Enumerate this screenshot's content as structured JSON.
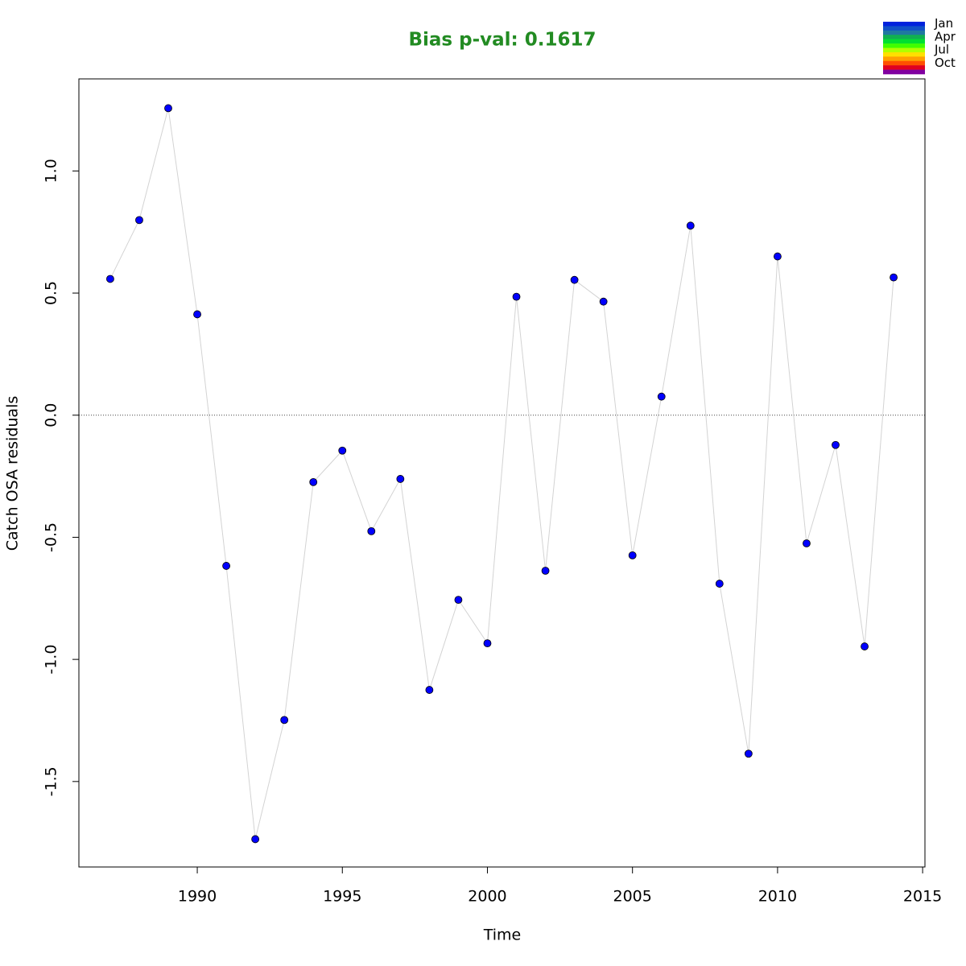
{
  "chart_data": {
    "type": "line",
    "title": "Bias p-val: 0.1617",
    "title_color": "#228b22",
    "x_label": "Time",
    "y_label": "Catch OSA residuals",
    "x": [
      1987,
      1988,
      1989,
      1990,
      1991,
      1992,
      1993,
      1994,
      1995,
      1996,
      1997,
      1998,
      1999,
      2000,
      2001,
      2002,
      2003,
      2004,
      2005,
      2006,
      2007,
      2008,
      2009,
      2010,
      2011,
      2012,
      2013,
      2014
    ],
    "series": [
      {
        "color": "#0000ff",
        "line_color": "#d3d3d3",
        "values": [
          0.558,
          0.799,
          1.257,
          0.413,
          -0.617,
          -1.736,
          -1.248,
          -0.274,
          -0.145,
          -0.475,
          -0.261,
          -1.125,
          -0.756,
          -0.934,
          0.485,
          -0.637,
          0.554,
          0.465,
          -0.574,
          0.076,
          0.776,
          -0.69,
          -1.386,
          0.65,
          -0.525,
          -0.122,
          -0.947,
          0.564
        ]
      }
    ],
    "xlim": [
      1985.92,
      2015.08
    ],
    "xticks": [
      1990,
      1995,
      2000,
      2005,
      2010,
      2015
    ],
    "ylim": [
      -1.85,
      1.377
    ],
    "yticks": [
      -1.5,
      {
        "value": -1,
        "label": "-1.0"
      },
      -0.5,
      {
        "value": 0,
        "label": "0.0"
      },
      0.5,
      {
        "value": 1,
        "label": "1.0"
      }
    ],
    "reference_line": 0,
    "legend": {
      "position": "top-right",
      "labels": [
        "Jan",
        "Apr",
        "Jul",
        "Oct"
      ],
      "colors": [
        "#0022dd",
        "#1050c8",
        "#1f78a0",
        "#10b050",
        "#00e030",
        "#40ff00",
        "#b0ff00",
        "#ffe000",
        "#ffa000",
        "#ff5000",
        "#e00020",
        "#8000a0"
      ]
    }
  }
}
